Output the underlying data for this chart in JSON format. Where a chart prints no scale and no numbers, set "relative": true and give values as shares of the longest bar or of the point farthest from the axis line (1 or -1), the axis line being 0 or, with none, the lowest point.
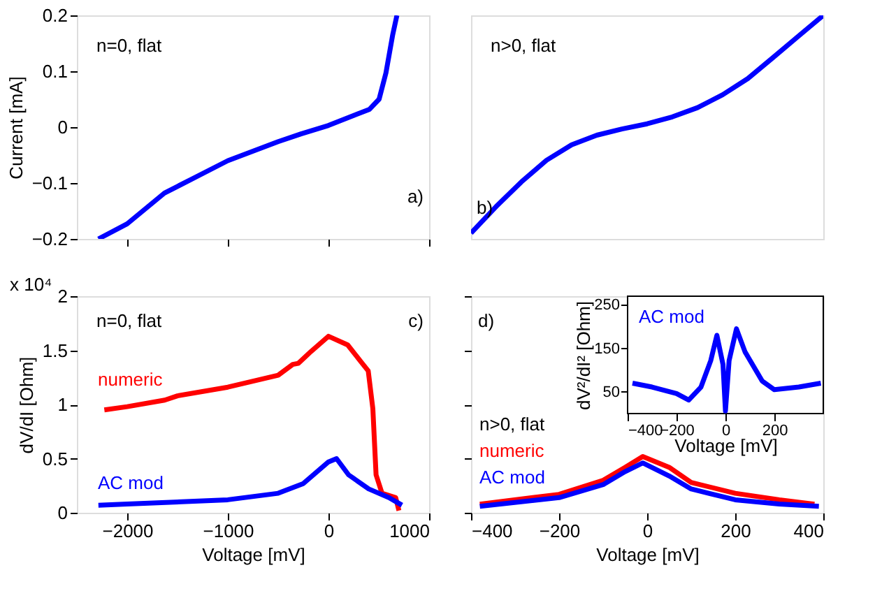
{
  "chart_data": [
    {
      "type": "line",
      "ylabel": "Current [mA]",
      "xlim": [
        -2500,
        1000
      ],
      "xticks": [
        -2000,
        -1000,
        0,
        1000
      ],
      "ylim": [
        -0.2,
        0.2
      ],
      "yticks": [
        -0.2,
        -0.1,
        0,
        0.1,
        0.2
      ],
      "tick_labels": "y",
      "annotations": [
        "n=0, flat",
        "a)"
      ],
      "series": [
        {
          "color": "#0000ff",
          "x": [
            -2286,
            -2000,
            -1630,
            -1500,
            -1000,
            -500,
            -272,
            0,
            408,
            503,
            571,
            639,
            680
          ],
          "values": [
            -0.2,
            -0.173,
            -0.118,
            -0.106,
            -0.06,
            -0.026,
            -0.012,
            0.003,
            0.032,
            0.05,
            0.097,
            0.166,
            0.2
          ]
        }
      ]
    },
    {
      "type": "line",
      "relative": true,
      "categories": [
        null,
        null,
        null,
        null,
        null,
        null,
        null,
        null,
        null,
        null,
        null,
        null,
        null,
        null,
        null
      ],
      "annotations": [
        "n>0, flat",
        "b)"
      ],
      "series": [
        {
          "color": "#0000ff",
          "values": [
            0.026,
            0.145,
            0.255,
            0.352,
            0.421,
            0.464,
            0.492,
            0.515,
            0.546,
            0.587,
            0.645,
            0.717,
            0.811,
            0.906,
            1
          ]
        }
      ]
    },
    {
      "type": "line",
      "xlabel": "Voltage [mV]",
      "ylabel": "dV/dI [Ohm]",
      "xlim": [
        -2500,
        1000
      ],
      "xticks": [
        -2000,
        -1000,
        0,
        1000
      ],
      "ylim": [
        0,
        2
      ],
      "yticks": [
        0,
        0.5,
        1,
        1.5,
        2
      ],
      "annotations": [
        "n=0, flat",
        "c)",
        "x 10⁴"
      ],
      "series": [
        {
          "name": "numeric",
          "color": "#ff0000",
          "x": [
            -2227,
            -2000,
            -1627,
            -1500,
            -1000,
            -500,
            -355,
            -300,
            -173,
            0,
            191,
            327,
            395,
            441,
            473,
            532,
            668,
            700
          ],
          "values": [
            0.95,
            0.98,
            1.04,
            1.08,
            1.16,
            1.27,
            1.37,
            1.38,
            1.49,
            1.63,
            1.55,
            1.39,
            1.31,
            0.96,
            0.35,
            0.18,
            0.14,
            0.02
          ]
        },
        {
          "name": "AC mod",
          "color": "#0000ff",
          "x": [
            -2286,
            -2000,
            -1000,
            -500,
            -250,
            0,
            80,
            200,
            400,
            600,
            730
          ],
          "values": [
            0.07,
            0.08,
            0.12,
            0.18,
            0.27,
            0.47,
            0.5,
            0.35,
            0.22,
            0.14,
            0.07
          ]
        }
      ]
    },
    {
      "type": "line",
      "xlabel": "Voltage [mV]",
      "xlim": [
        -400,
        400
      ],
      "xticks": [
        -400,
        -200,
        0,
        200,
        400
      ],
      "ylim": [
        0,
        2
      ],
      "yticks": [
        0,
        0.5,
        1,
        1.5,
        2
      ],
      "tick_labels": "x",
      "annotations": [
        "d)",
        "n>0, flat"
      ],
      "series": [
        {
          "name": "numeric",
          "color": "#ff0000",
          "x": [
            -380,
            -200,
            -100,
            -50,
            -10,
            50,
            100,
            200,
            300,
            380
          ],
          "values": [
            0.08,
            0.17,
            0.3,
            0.42,
            0.52,
            0.42,
            0.28,
            0.18,
            0.12,
            0.08
          ]
        },
        {
          "name": "AC mod",
          "color": "#0000ff",
          "x": [
            -380,
            -200,
            -100,
            -50,
            -10,
            50,
            100,
            200,
            300,
            390
          ],
          "values": [
            0.06,
            0.14,
            0.26,
            0.38,
            0.46,
            0.34,
            0.22,
            0.12,
            0.08,
            0.06
          ]
        }
      ]
    },
    {
      "type": "line",
      "xlabel": "Voltage [mV]",
      "ylabel": "dV²/dI² [Ohm]",
      "xlim": [
        -400,
        400
      ],
      "xticks": [
        -400,
        -200,
        0,
        200
      ],
      "ylim": [
        0,
        270
      ],
      "yticks": [
        50,
        150,
        250
      ],
      "series": [
        {
          "name": "AC mod",
          "color": "#0000ff",
          "x": [
            -380,
            -300,
            -200,
            -150,
            -100,
            -60,
            -35,
            -10,
            0,
            15,
            45,
            80,
            150,
            200,
            300,
            390
          ],
          "values": [
            70,
            61,
            46,
            31,
            61,
            122,
            180,
            113,
            6,
            122,
            195,
            142,
            75,
            55,
            61,
            70
          ]
        }
      ]
    }
  ]
}
